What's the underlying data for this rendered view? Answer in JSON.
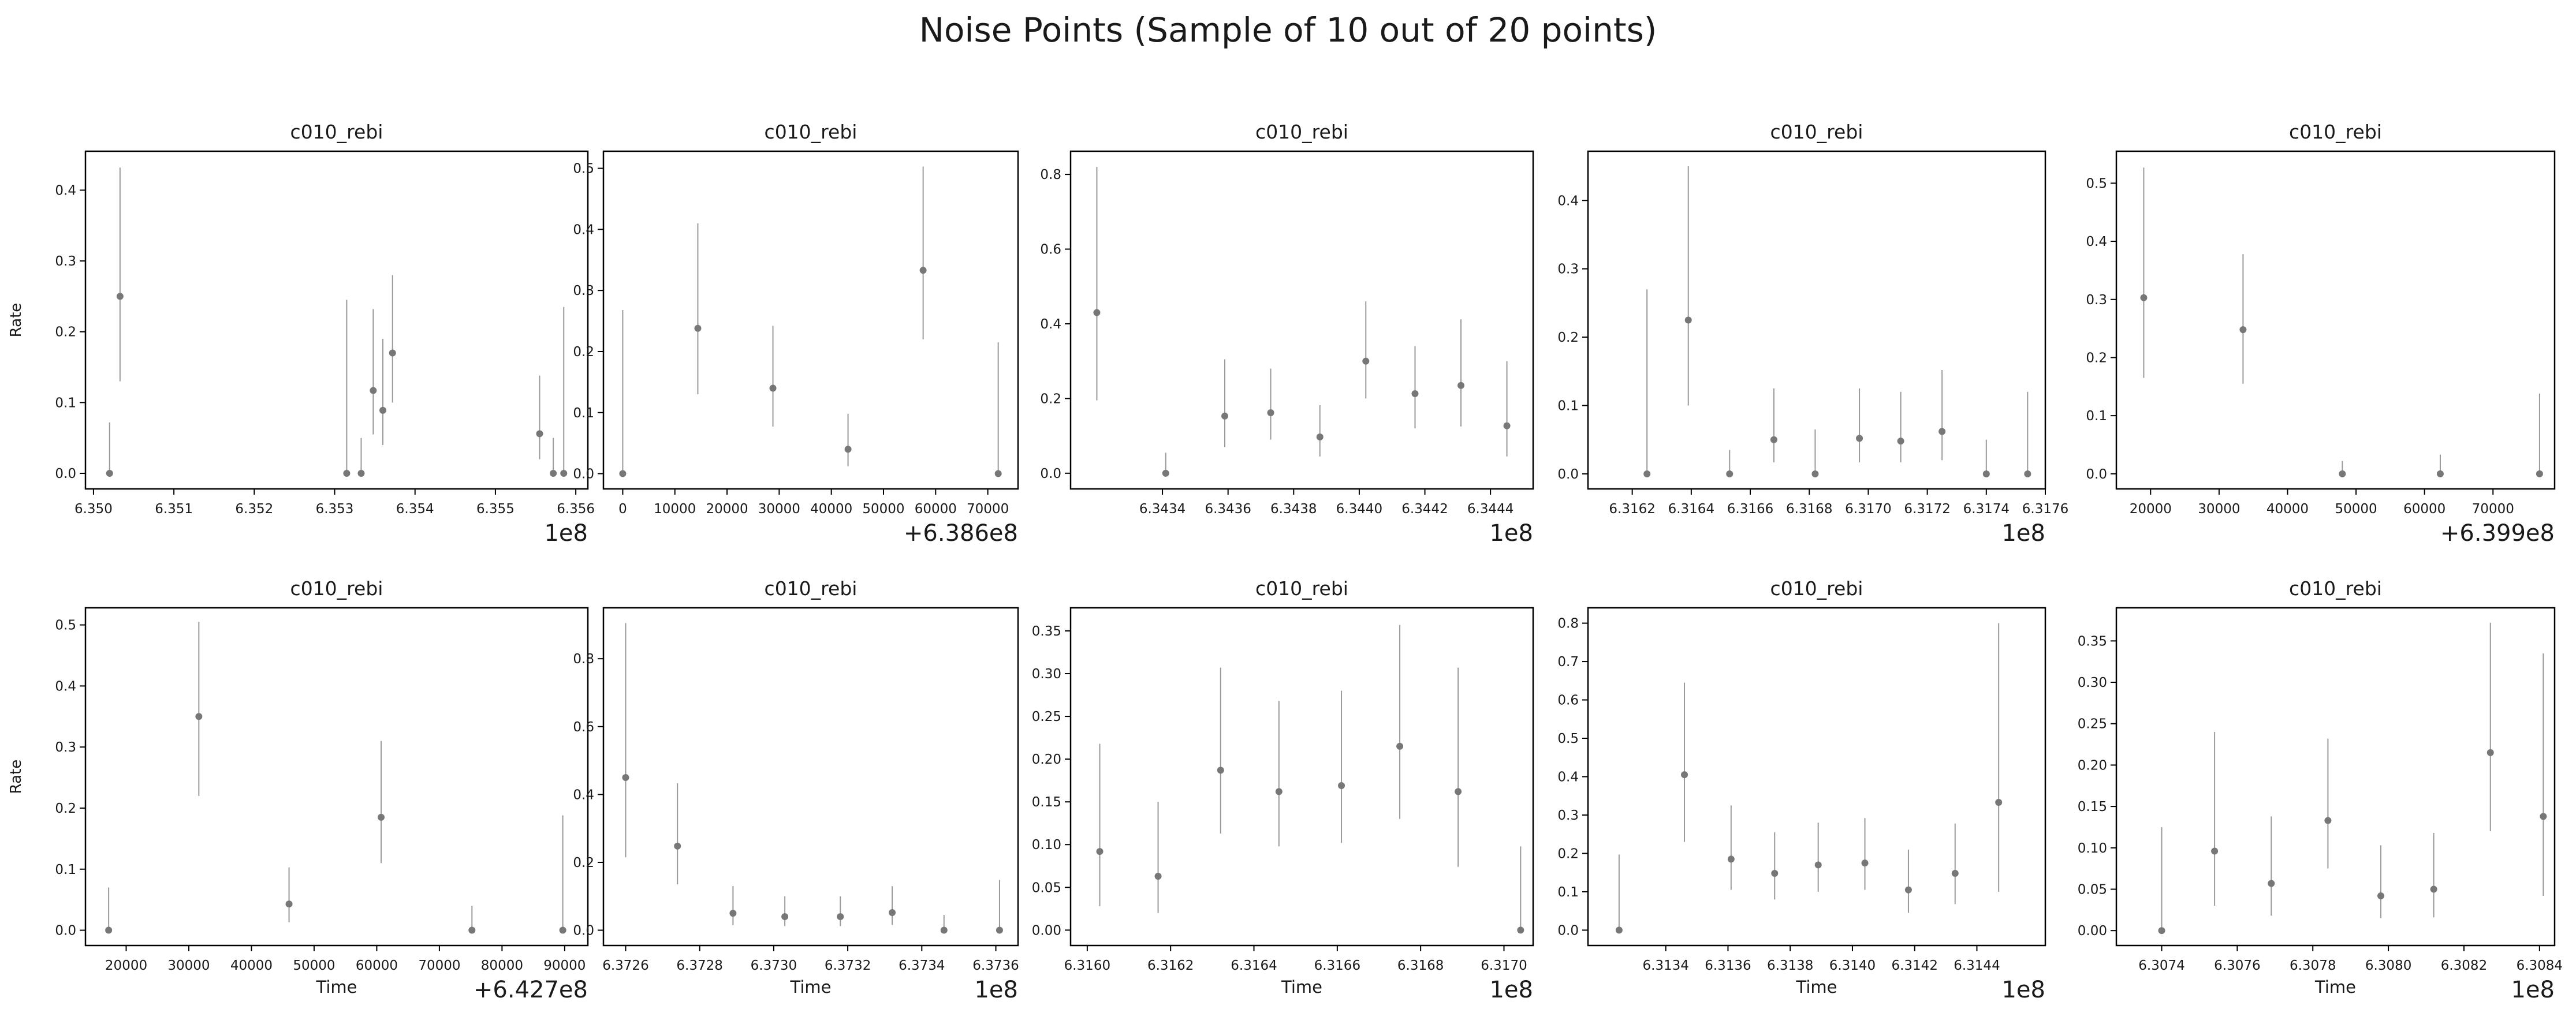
{
  "figure": {
    "title": "Noise Points (Sample of 10 out of 20 points)"
  },
  "colors": {
    "marker": "#777777",
    "errorbar": "#999999",
    "axis": "#000000",
    "text": "#1a1a1a"
  },
  "chart_data": [
    {
      "type": "scatter",
      "title": "c010_rebi",
      "xlabel": "",
      "ylabel": "Rate",
      "xlim": [
        634990000,
        635615000
      ],
      "ylim": [
        -0.022,
        0.455
      ],
      "xticks": [
        635000000,
        635100000,
        635200000,
        635300000,
        635400000,
        635500000,
        635600000
      ],
      "xticklabels": [
        "6.350",
        "6.351",
        "6.352",
        "6.353",
        "6.354",
        "6.355",
        "6.356"
      ],
      "yticks": [
        0.0,
        0.1,
        0.2,
        0.3,
        0.4
      ],
      "yticklabels": [
        "0.0",
        "0.1",
        "0.2",
        "0.3",
        "0.4"
      ],
      "offset_text": "1e8",
      "points": [
        {
          "x": 635020000,
          "y": 0.0,
          "lo": 0.0,
          "hi": 0.072
        },
        {
          "x": 635033000,
          "y": 0.25,
          "lo": 0.13,
          "hi": 0.432
        },
        {
          "x": 635315000,
          "y": 0.0,
          "lo": 0.0,
          "hi": 0.245
        },
        {
          "x": 635333000,
          "y": 0.0,
          "lo": 0.0,
          "hi": 0.05
        },
        {
          "x": 635348000,
          "y": 0.117,
          "lo": 0.055,
          "hi": 0.232
        },
        {
          "x": 635360000,
          "y": 0.089,
          "lo": 0.04,
          "hi": 0.19
        },
        {
          "x": 635372000,
          "y": 0.17,
          "lo": 0.1,
          "hi": 0.28
        },
        {
          "x": 635555000,
          "y": 0.056,
          "lo": 0.02,
          "hi": 0.138
        },
        {
          "x": 635572000,
          "y": 0.0,
          "lo": 0.0,
          "hi": 0.05
        },
        {
          "x": 635585000,
          "y": 0.0,
          "lo": 0.0,
          "hi": 0.235
        }
      ]
    },
    {
      "type": "scatter",
      "title": "c010_rebi",
      "xlabel": "",
      "ylabel": "",
      "xlim": [
        -3700,
        75800
      ],
      "ylim": [
        -0.025,
        0.528
      ],
      "xticks": [
        0,
        10000,
        20000,
        30000,
        40000,
        50000,
        60000,
        70000
      ],
      "xticklabels": [
        "0",
        "10000",
        "20000",
        "30000",
        "40000",
        "50000",
        "60000",
        "70000"
      ],
      "yticks": [
        0.0,
        0.1,
        0.2,
        0.3,
        0.4,
        0.5
      ],
      "yticklabels": [
        "0.0",
        "0.1",
        "0.2",
        "0.3",
        "0.4",
        "0.5"
      ],
      "offset_text": "+6.386e8",
      "points": [
        {
          "x": 0,
          "y": 0.0,
          "lo": 0.0,
          "hi": 0.268
        },
        {
          "x": 14400,
          "y": 0.238,
          "lo": 0.13,
          "hi": 0.41
        },
        {
          "x": 28800,
          "y": 0.14,
          "lo": 0.077,
          "hi": 0.242
        },
        {
          "x": 43200,
          "y": 0.04,
          "lo": 0.012,
          "hi": 0.098
        },
        {
          "x": 57600,
          "y": 0.333,
          "lo": 0.22,
          "hi": 0.503
        },
        {
          "x": 72000,
          "y": 0.0,
          "lo": 0.0,
          "hi": 0.215
        }
      ]
    },
    {
      "type": "scatter",
      "title": "c010_rebi",
      "xlabel": "",
      "ylabel": "",
      "xlim": [
        634312000,
        634453000
      ],
      "ylim": [
        -0.042,
        0.862
      ],
      "xticks": [
        634340000,
        634360000,
        634380000,
        634400000,
        634420000,
        634440000
      ],
      "xticklabels": [
        "6.3434",
        "6.3436",
        "6.3438",
        "6.3440",
        "6.3442",
        "6.3444"
      ],
      "yticks": [
        0.0,
        0.2,
        0.4,
        0.6,
        0.8
      ],
      "yticklabels": [
        "0.0",
        "0.2",
        "0.4",
        "0.6",
        "0.8"
      ],
      "offset_text": "1e8",
      "points": [
        {
          "x": 634320000,
          "y": 0.43,
          "lo": 0.195,
          "hi": 0.82
        },
        {
          "x": 634341000,
          "y": 0.0,
          "lo": 0.0,
          "hi": 0.055
        },
        {
          "x": 634359000,
          "y": 0.153,
          "lo": 0.07,
          "hi": 0.305
        },
        {
          "x": 634373000,
          "y": 0.162,
          "lo": 0.09,
          "hi": 0.28
        },
        {
          "x": 634388000,
          "y": 0.097,
          "lo": 0.045,
          "hi": 0.182
        },
        {
          "x": 634402000,
          "y": 0.3,
          "lo": 0.2,
          "hi": 0.46
        },
        {
          "x": 634417000,
          "y": 0.213,
          "lo": 0.12,
          "hi": 0.34
        },
        {
          "x": 634431000,
          "y": 0.235,
          "lo": 0.125,
          "hi": 0.412
        },
        {
          "x": 634445000,
          "y": 0.127,
          "lo": 0.045,
          "hi": 0.3
        }
      ]
    },
    {
      "type": "scatter",
      "title": "c010_rebi",
      "xlabel": "",
      "ylabel": "",
      "xlim": [
        631605000,
        631760000
      ],
      "ylim": [
        -0.022,
        0.472
      ],
      "xticks": [
        631620000,
        631640000,
        631660000,
        631680000,
        631700000,
        631720000,
        631740000,
        631760000
      ],
      "xticklabels": [
        "6.3162",
        "6.3164",
        "6.3166",
        "6.3168",
        "6.3170",
        "6.3172",
        "6.3174",
        "6.3176"
      ],
      "yticks": [
        0.0,
        0.1,
        0.2,
        0.3,
        0.4
      ],
      "yticklabels": [
        "0.0",
        "0.1",
        "0.2",
        "0.3",
        "0.4"
      ],
      "offset_text": "1e8",
      "points": [
        {
          "x": 631625000,
          "y": 0.0,
          "lo": 0.0,
          "hi": 0.27
        },
        {
          "x": 631639000,
          "y": 0.225,
          "lo": 0.1,
          "hi": 0.45
        },
        {
          "x": 631653000,
          "y": 0.0,
          "lo": 0.0,
          "hi": 0.035
        },
        {
          "x": 631668000,
          "y": 0.05,
          "lo": 0.017,
          "hi": 0.125
        },
        {
          "x": 631682000,
          "y": 0.0,
          "lo": 0.0,
          "hi": 0.065
        },
        {
          "x": 631697000,
          "y": 0.052,
          "lo": 0.017,
          "hi": 0.125
        },
        {
          "x": 631711000,
          "y": 0.048,
          "lo": 0.017,
          "hi": 0.12
        },
        {
          "x": 631725000,
          "y": 0.062,
          "lo": 0.02,
          "hi": 0.152
        },
        {
          "x": 631740000,
          "y": 0.0,
          "lo": 0.0,
          "hi": 0.05
        },
        {
          "x": 631754000,
          "y": 0.0,
          "lo": 0.0,
          "hi": 0.12
        }
      ]
    },
    {
      "type": "scatter",
      "title": "c010_rebi",
      "xlabel": "",
      "ylabel": "",
      "xlim": [
        15000,
        79000
      ],
      "ylim": [
        -0.026,
        0.555
      ],
      "xticks": [
        20000,
        30000,
        40000,
        50000,
        60000,
        70000
      ],
      "xticklabels": [
        "20000",
        "30000",
        "40000",
        "50000",
        "60000",
        "70000"
      ],
      "yticks": [
        0.0,
        0.1,
        0.2,
        0.3,
        0.4,
        0.5
      ],
      "yticklabels": [
        "0.0",
        "0.1",
        "0.2",
        "0.3",
        "0.4",
        "0.5"
      ],
      "offset_text": "+6.399e8",
      "points": [
        {
          "x": 19000,
          "y": 0.303,
          "lo": 0.165,
          "hi": 0.527
        },
        {
          "x": 33500,
          "y": 0.248,
          "lo": 0.155,
          "hi": 0.378
        },
        {
          "x": 48000,
          "y": 0.0,
          "lo": 0.0,
          "hi": 0.022
        },
        {
          "x": 62300,
          "y": 0.0,
          "lo": 0.0,
          "hi": 0.033
        },
        {
          "x": 76800,
          "y": 0.0,
          "lo": 0.0,
          "hi": 0.138
        }
      ]
    },
    {
      "type": "scatter",
      "title": "c010_rebi",
      "xlabel": "Time",
      "ylabel": "Rate",
      "xlim": [
        13500,
        93700
      ],
      "ylim": [
        -0.025,
        0.528
      ],
      "xticks": [
        20000,
        30000,
        40000,
        50000,
        60000,
        70000,
        80000,
        90000
      ],
      "xticklabels": [
        "20000",
        "30000",
        "40000",
        "50000",
        "60000",
        "70000",
        "80000",
        "90000"
      ],
      "yticks": [
        0.0,
        0.1,
        0.2,
        0.3,
        0.4,
        0.5
      ],
      "yticklabels": [
        "0.0",
        "0.1",
        "0.2",
        "0.3",
        "0.4",
        "0.5"
      ],
      "offset_text": "+6.427e8",
      "points": [
        {
          "x": 17200,
          "y": 0.0,
          "lo": 0.0,
          "hi": 0.07
        },
        {
          "x": 31600,
          "y": 0.35,
          "lo": 0.22,
          "hi": 0.505
        },
        {
          "x": 46000,
          "y": 0.043,
          "lo": 0.013,
          "hi": 0.103
        },
        {
          "x": 60700,
          "y": 0.185,
          "lo": 0.11,
          "hi": 0.31
        },
        {
          "x": 75200,
          "y": 0.0,
          "lo": 0.0,
          "hi": 0.04
        },
        {
          "x": 89700,
          "y": 0.0,
          "lo": 0.0,
          "hi": 0.188
        }
      ]
    },
    {
      "type": "scatter",
      "title": "c010_rebi",
      "xlabel": "Time",
      "ylabel": "",
      "xlim": [
        637254000,
        637366000
      ],
      "ylim": [
        -0.045,
        0.95
      ],
      "xticks": [
        637260000,
        637280000,
        637300000,
        637320000,
        637340000,
        637360000
      ],
      "xticklabels": [
        "6.3726",
        "6.3728",
        "6.3730",
        "6.3732",
        "6.3734",
        "6.3736"
      ],
      "yticks": [
        0.0,
        0.2,
        0.4,
        0.6,
        0.8
      ],
      "yticklabels": [
        "0.0",
        "0.2",
        "0.4",
        "0.6",
        "0.8"
      ],
      "offset_text": "1e8",
      "points": [
        {
          "x": 637260000,
          "y": 0.45,
          "lo": 0.215,
          "hi": 0.905
        },
        {
          "x": 637274000,
          "y": 0.248,
          "lo": 0.135,
          "hi": 0.433
        },
        {
          "x": 637289000,
          "y": 0.05,
          "lo": 0.015,
          "hi": 0.13
        },
        {
          "x": 637303000,
          "y": 0.04,
          "lo": 0.012,
          "hi": 0.1
        },
        {
          "x": 637318000,
          "y": 0.04,
          "lo": 0.012,
          "hi": 0.1
        },
        {
          "x": 637332000,
          "y": 0.052,
          "lo": 0.016,
          "hi": 0.13
        },
        {
          "x": 637346000,
          "y": 0.0,
          "lo": 0.0,
          "hi": 0.045
        },
        {
          "x": 637361000,
          "y": 0.0,
          "lo": 0.0,
          "hi": 0.148
        }
      ]
    },
    {
      "type": "scatter",
      "title": "c010_rebi",
      "xlabel": "Time",
      "ylabel": "",
      "xlim": [
        631596000,
        631707000
      ],
      "ylim": [
        -0.018,
        0.377
      ],
      "xticks": [
        631600000,
        631620000,
        631640000,
        631660000,
        631680000,
        631700000
      ],
      "xticklabels": [
        "6.3160",
        "6.3162",
        "6.3164",
        "6.3166",
        "6.3168",
        "6.3170"
      ],
      "yticks": [
        0.0,
        0.05,
        0.1,
        0.15,
        0.2,
        0.25,
        0.3,
        0.35
      ],
      "yticklabels": [
        "0.00",
        "0.05",
        "0.10",
        "0.15",
        "0.20",
        "0.25",
        "0.30",
        "0.35"
      ],
      "offset_text": "1e8",
      "points": [
        {
          "x": 631603000,
          "y": 0.092,
          "lo": 0.028,
          "hi": 0.218
        },
        {
          "x": 631617000,
          "y": 0.063,
          "lo": 0.02,
          "hi": 0.15
        },
        {
          "x": 631632000,
          "y": 0.187,
          "lo": 0.113,
          "hi": 0.307
        },
        {
          "x": 631646000,
          "y": 0.162,
          "lo": 0.098,
          "hi": 0.268
        },
        {
          "x": 631661000,
          "y": 0.169,
          "lo": 0.102,
          "hi": 0.28
        },
        {
          "x": 631675000,
          "y": 0.215,
          "lo": 0.13,
          "hi": 0.357
        },
        {
          "x": 631689000,
          "y": 0.162,
          "lo": 0.074,
          "hi": 0.307
        },
        {
          "x": 631704000,
          "y": 0.0,
          "lo": 0.0,
          "hi": 0.098
        }
      ]
    },
    {
      "type": "scatter",
      "title": "c010_rebi",
      "xlabel": "Time",
      "ylabel": "",
      "xlim": [
        631315000,
        631462000
      ],
      "ylim": [
        -0.04,
        0.84
      ],
      "xticks": [
        631340000,
        631360000,
        631380000,
        631400000,
        631420000,
        631440000
      ],
      "xticklabels": [
        "6.3134",
        "6.3136",
        "6.3138",
        "6.3140",
        "6.3142",
        "6.3144"
      ],
      "yticks": [
        0.0,
        0.1,
        0.2,
        0.3,
        0.4,
        0.5,
        0.6,
        0.7,
        0.8
      ],
      "yticklabels": [
        "0.0",
        "0.1",
        "0.2",
        "0.3",
        "0.4",
        "0.5",
        "0.6",
        "0.7",
        "0.8"
      ],
      "offset_text": "1e8",
      "points": [
        {
          "x": 631325000,
          "y": 0.0,
          "lo": 0.0,
          "hi": 0.197
        },
        {
          "x": 631346000,
          "y": 0.405,
          "lo": 0.23,
          "hi": 0.645
        },
        {
          "x": 631361000,
          "y": 0.185,
          "lo": 0.105,
          "hi": 0.325
        },
        {
          "x": 631375000,
          "y": 0.148,
          "lo": 0.08,
          "hi": 0.255
        },
        {
          "x": 631389000,
          "y": 0.17,
          "lo": 0.1,
          "hi": 0.28
        },
        {
          "x": 631404000,
          "y": 0.175,
          "lo": 0.105,
          "hi": 0.292
        },
        {
          "x": 631418000,
          "y": 0.105,
          "lo": 0.045,
          "hi": 0.21
        },
        {
          "x": 631433000,
          "y": 0.148,
          "lo": 0.068,
          "hi": 0.278
        },
        {
          "x": 631447000,
          "y": 0.333,
          "lo": 0.1,
          "hi": 0.8
        }
      ]
    },
    {
      "type": "scatter",
      "title": "c010_rebi",
      "xlabel": "Time",
      "ylabel": "",
      "xlim": [
        630728000,
        630844000
      ],
      "ylim": [
        -0.018,
        0.39
      ],
      "xticks": [
        630740000,
        630760000,
        630780000,
        630800000,
        630820000,
        630840000
      ],
      "xticklabels": [
        "6.3074",
        "6.3076",
        "6.3078",
        "6.3080",
        "6.3082",
        "6.3084"
      ],
      "yticks": [
        0.0,
        0.05,
        0.1,
        0.15,
        0.2,
        0.25,
        0.3,
        0.35
      ],
      "yticklabels": [
        "0.00",
        "0.05",
        "0.10",
        "0.15",
        "0.20",
        "0.25",
        "0.30",
        "0.35"
      ],
      "offset_text": "1e8",
      "points": [
        {
          "x": 630740000,
          "y": 0.0,
          "lo": 0.0,
          "hi": 0.125
        },
        {
          "x": 630754000,
          "y": 0.096,
          "lo": 0.03,
          "hi": 0.24
        },
        {
          "x": 630769000,
          "y": 0.057,
          "lo": 0.018,
          "hi": 0.138
        },
        {
          "x": 630784000,
          "y": 0.133,
          "lo": 0.075,
          "hi": 0.232
        },
        {
          "x": 630798000,
          "y": 0.042,
          "lo": 0.015,
          "hi": 0.103
        },
        {
          "x": 630812000,
          "y": 0.05,
          "lo": 0.016,
          "hi": 0.118
        },
        {
          "x": 630827000,
          "y": 0.215,
          "lo": 0.12,
          "hi": 0.372
        },
        {
          "x": 630841000,
          "y": 0.138,
          "lo": 0.042,
          "hi": 0.335
        }
      ]
    }
  ]
}
